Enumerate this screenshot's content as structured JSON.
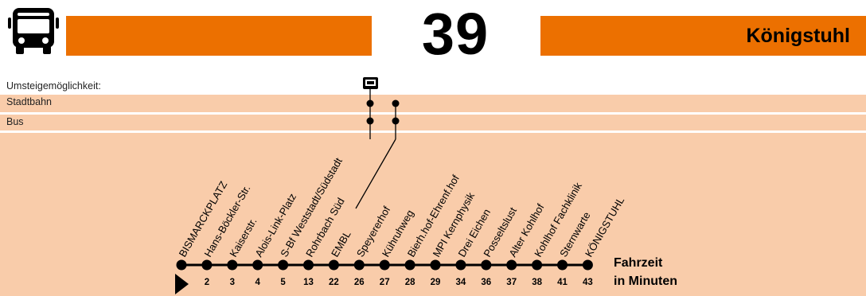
{
  "header": {
    "route_number": "39",
    "destination": "Königstuhl",
    "bus_icon": "bus-icon",
    "accent_color": "#ec7000",
    "band_color": "#f9ccaa"
  },
  "transfer_legend": {
    "heading": "Umsteigemöglichkeit:",
    "heading_icon": "tram-icon",
    "stadtbahn": "Stadtbahn",
    "bus": "Bus"
  },
  "stops": [
    {
      "name": "BISMARCKPLATZ",
      "time": ""
    },
    {
      "name": "Hans-Böckler-Str.",
      "time": "2"
    },
    {
      "name": "Kaiserstr.",
      "time": "3"
    },
    {
      "name": "Alois-Link-Platz",
      "time": "4"
    },
    {
      "name": "S-Bf Weststadt/Südstadt",
      "time": "5",
      "transfers": [
        "stadtbahn",
        "bus"
      ]
    },
    {
      "name": "Rohrbach Süd",
      "time": "13",
      "transfers": [
        "stadtbahn",
        "bus"
      ]
    },
    {
      "name": "EMBL",
      "time": "22"
    },
    {
      "name": "Speyererhof",
      "time": "26"
    },
    {
      "name": "Kühruhweg",
      "time": "27"
    },
    {
      "name": "Bierh.hof-Ehrenf.hof",
      "time": "28"
    },
    {
      "name": "MPI Kernphysik",
      "time": "29"
    },
    {
      "name": "Drei Eichen",
      "time": "34"
    },
    {
      "name": "Posseltslust",
      "time": "36"
    },
    {
      "name": "Alter Kohlhof",
      "time": "37"
    },
    {
      "name": "Kohlhof Fachklinik",
      "time": "38"
    },
    {
      "name": "Sternwarte",
      "time": "41"
    },
    {
      "name": "KÖNIGSTUHL",
      "time": "43"
    }
  ],
  "footer": {
    "fahrzeit_line1": "Fahrzeit",
    "fahrzeit_line2": "in Minuten"
  }
}
